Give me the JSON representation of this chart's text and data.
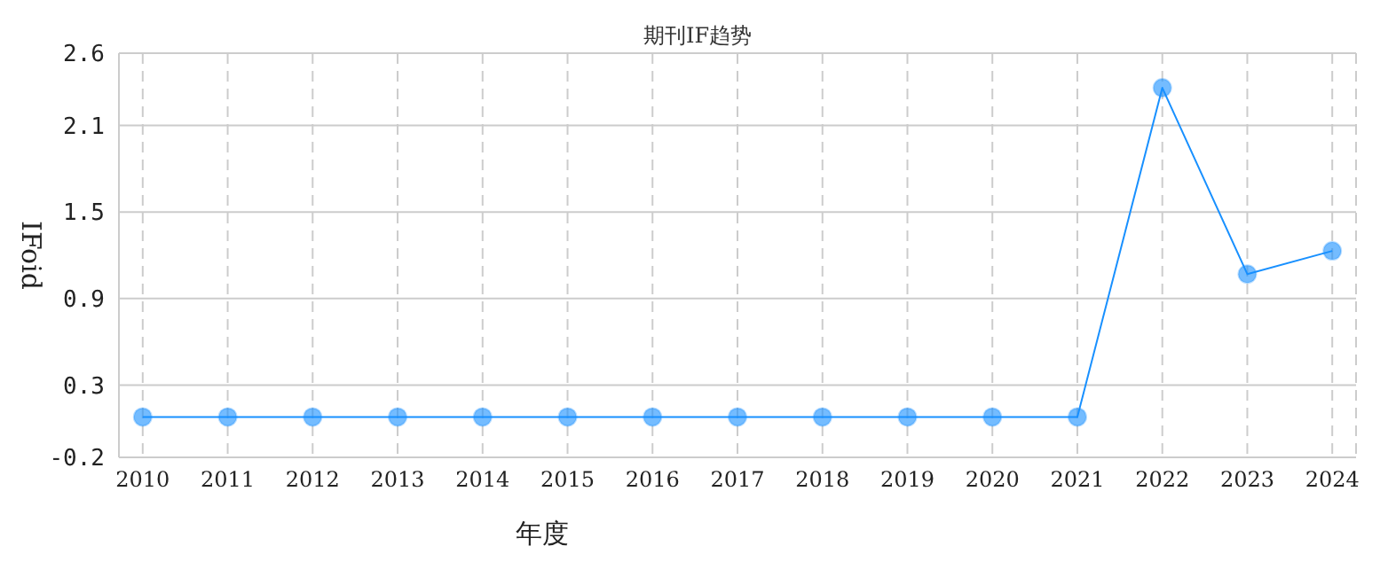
{
  "chart_data": {
    "type": "line",
    "title": "期刊IF趋势",
    "xlabel": "年度",
    "ylabel": "IFoid",
    "categories": [
      "2010",
      "2011",
      "2012",
      "2013",
      "2014",
      "2015",
      "2016",
      "2017",
      "2018",
      "2019",
      "2020",
      "2021",
      "2022",
      "2023",
      "2024"
    ],
    "series": [
      {
        "color": "#1890ff",
        "values": [
          0.08,
          0.08,
          0.08,
          0.08,
          0.08,
          0.08,
          0.08,
          0.08,
          0.08,
          0.08,
          0.08,
          0.08,
          2.36,
          1.07,
          1.23
        ]
      }
    ],
    "ylim": [
      -0.2,
      2.6
    ],
    "yticks": [
      -0.2,
      0.3,
      0.9,
      1.5,
      2.1,
      2.6
    ],
    "grid": true,
    "marker": "circle",
    "line_style": "solid"
  }
}
